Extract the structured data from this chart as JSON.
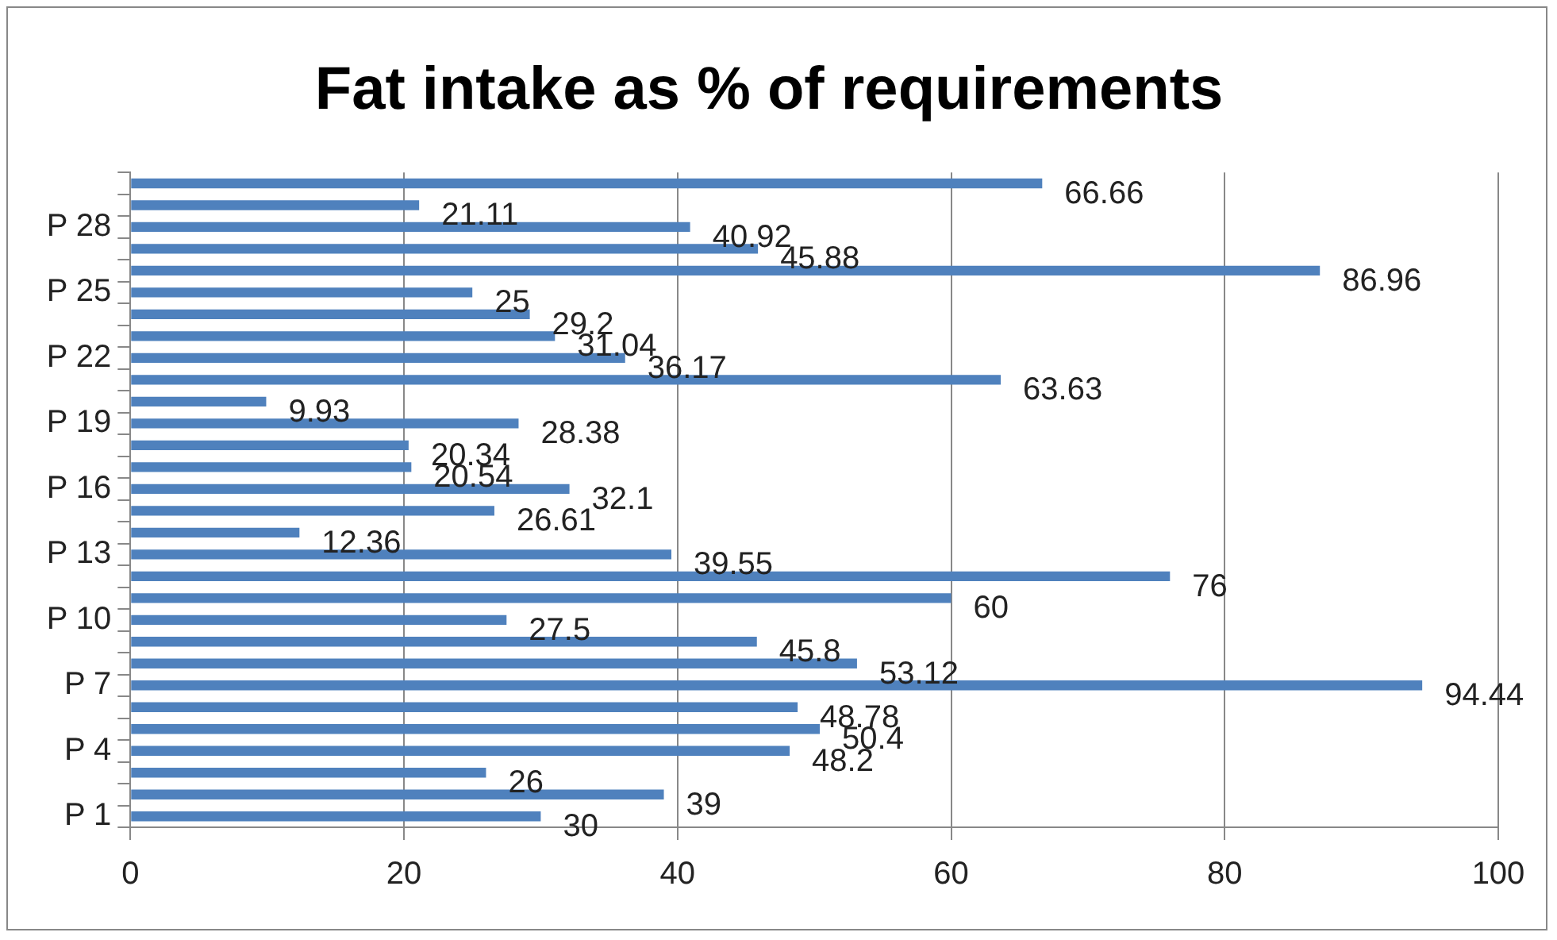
{
  "chart_data": {
    "type": "bar",
    "orientation": "horizontal",
    "title": "Fat intake as % of requirements",
    "categories": [
      null,
      null,
      "P 28",
      null,
      null,
      "P 25",
      null,
      null,
      "P 22",
      null,
      null,
      "P 19",
      null,
      null,
      "P 16",
      null,
      null,
      "P 13",
      null,
      null,
      "P 10",
      null,
      null,
      "P 7",
      null,
      null,
      "P 4",
      null,
      null,
      "P 1"
    ],
    "values": [
      66.66,
      21.11,
      40.92,
      45.88,
      86.96,
      25,
      29.2,
      31.04,
      36.17,
      63.63,
      9.93,
      28.38,
      20.34,
      20.54,
      32.1,
      26.61,
      12.36,
      39.55,
      76,
      60,
      27.5,
      45.8,
      53.12,
      94.44,
      48.78,
      50.4,
      48.2,
      26,
      39,
      30
    ],
    "color": "#4f81bd",
    "xlim": [
      0,
      100
    ],
    "xticks": [
      0,
      20,
      40,
      60,
      80,
      100
    ],
    "grid": "x",
    "data_labels": true
  }
}
